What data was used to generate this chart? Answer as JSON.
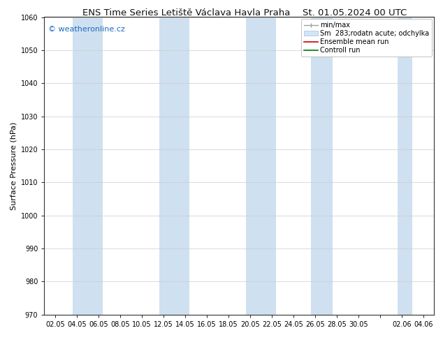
{
  "title_left": "ENS Time Series Letiště Václava Havla Praha",
  "title_right": "St. 01.05.2024 00 UTC",
  "ylabel": "Surface Pressure (hPa)",
  "ylim": [
    970,
    1060
  ],
  "yticks": [
    970,
    980,
    990,
    1000,
    1010,
    1020,
    1030,
    1040,
    1050,
    1060
  ],
  "xtick_labels": [
    "02.05",
    "04.05",
    "06.05",
    "08.05",
    "10.05",
    "12.05",
    "14.05",
    "16.05",
    "18.05",
    "20.05",
    "22.05",
    "24.05",
    "26.05",
    "28.05",
    "30.05",
    "",
    "02.06",
    "04.06"
  ],
  "band_color": "#cfe0f0",
  "bg_color": "#ffffff",
  "plot_bg": "#f8fbff",
  "watermark": "© weatheronline.cz",
  "watermark_color": "#1a6bbf",
  "legend_entries": [
    "min/max",
    "Sm  283;rodatn acute; odchylka",
    "Ensemble mean run",
    "Controll run"
  ],
  "legend_line_colors": [
    "#a0a0a0",
    "#c8dff0",
    "#cc0000",
    "#007700"
  ],
  "title_fontsize": 9.5,
  "tick_fontsize": 7,
  "ylabel_fontsize": 8,
  "watermark_fontsize": 8,
  "legend_fontsize": 7
}
